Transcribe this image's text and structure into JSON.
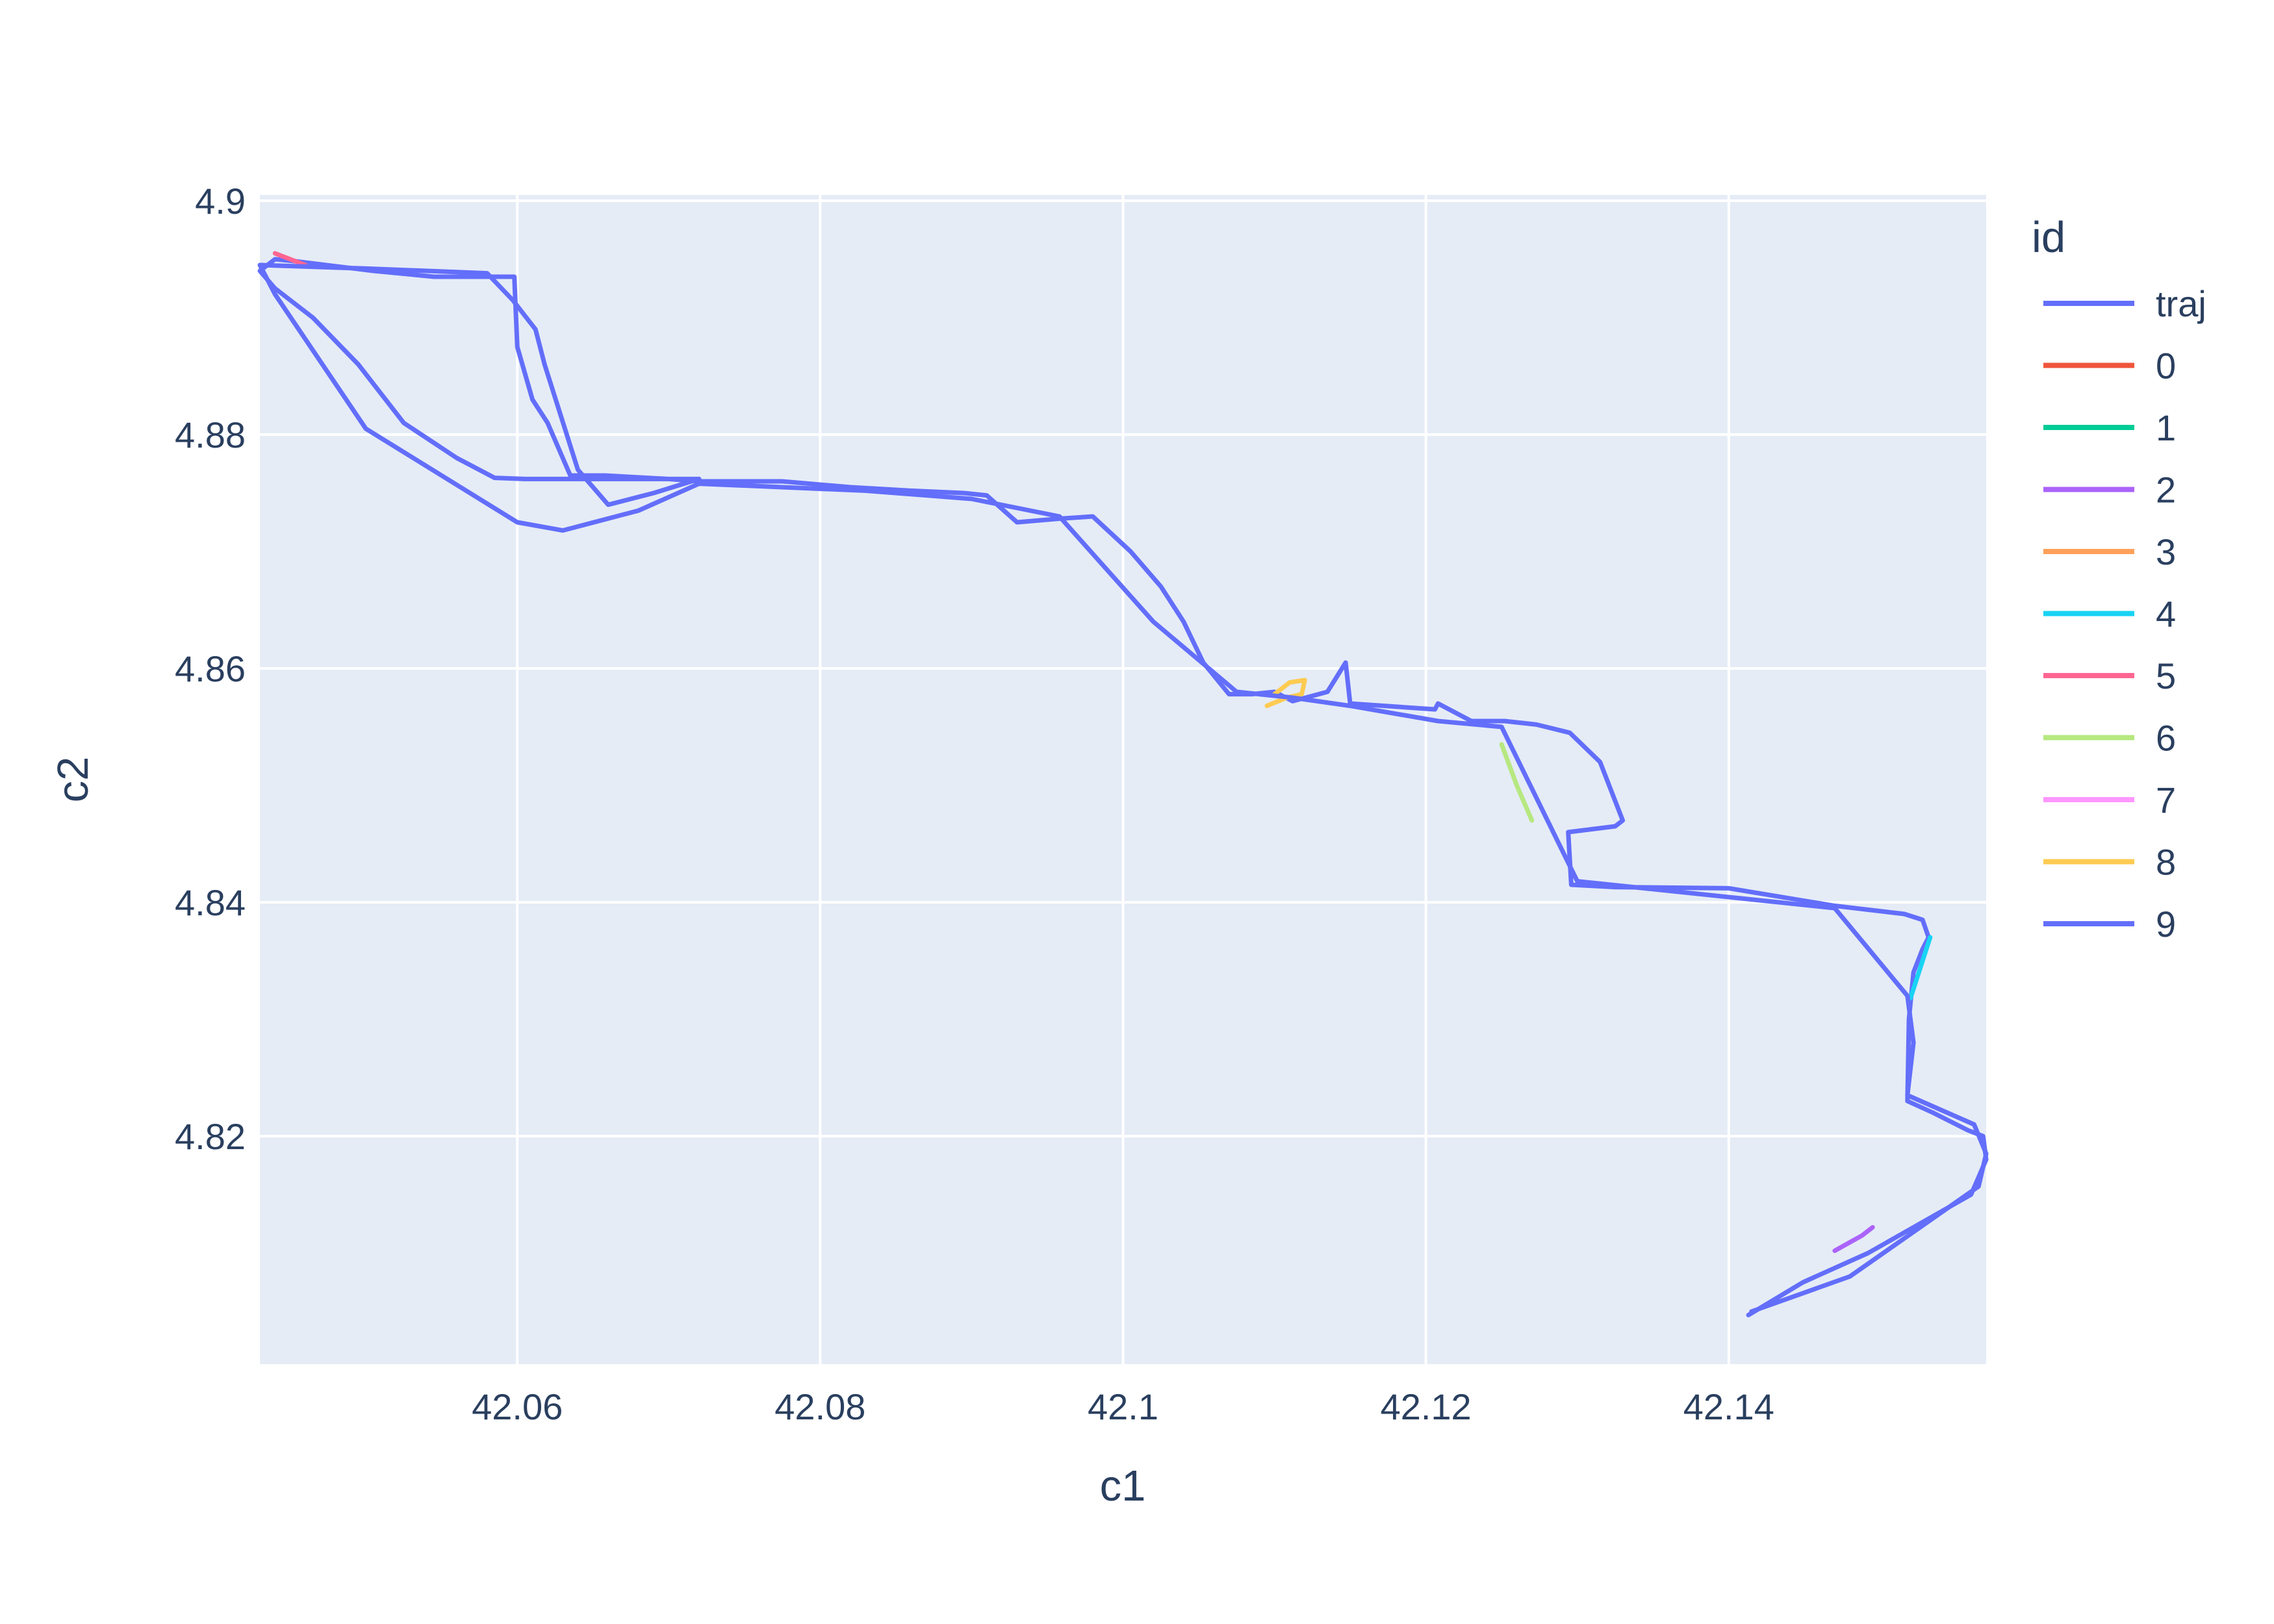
{
  "chart_data": {
    "type": "line",
    "xlabel": "c1",
    "ylabel": "c2",
    "xlim": [
      42.043,
      42.157
    ],
    "ylim": [
      4.8005,
      4.9005
    ],
    "x_ticks": [
      42.06,
      42.08,
      42.1,
      42.12,
      42.14
    ],
    "x_tick_labels": [
      "42.06",
      "42.08",
      "42.1",
      "42.12",
      "42.14"
    ],
    "y_ticks": [
      4.82,
      4.84,
      4.86,
      4.88,
      4.9
    ],
    "y_tick_labels": [
      "4.82",
      "4.84",
      "4.86",
      "4.88",
      "4.9"
    ],
    "grid": true,
    "plot_background": "#e5ecf6",
    "legend": {
      "title": "id",
      "placement": "right"
    },
    "series": [
      {
        "name": "traj",
        "color": "#636efa",
        "x": [
          42.1413,
          42.1449,
          42.1492,
          42.156,
          42.157,
          42.1568,
          42.1558,
          42.1535,
          42.1518,
          42.1519,
          42.1522,
          42.1528,
          42.1532,
          42.1528,
          42.1516,
          42.147,
          42.14,
          42.1325,
          42.1296,
          42.1294,
          42.1325,
          42.133,
          42.1315,
          42.1295,
          42.1273,
          42.1252,
          42.123,
          42.1208,
          42.1206,
          42.115,
          42.1147,
          42.1135,
          42.1112,
          42.11,
          42.1085,
          42.107,
          42.1053,
          42.104,
          42.1025,
          42.1005,
          42.098,
          42.0957,
          42.093,
          42.091,
          42.0895,
          42.086,
          42.082,
          42.0775,
          42.072,
          42.07,
          42.068,
          42.0665,
          42.0645,
          42.0625,
          42.0605,
          42.0585,
          42.056,
          42.0525,
          42.0495,
          42.0465,
          42.044,
          42.043,
          42.044,
          42.0455,
          42.0505,
          42.0545,
          42.0575,
          42.0598,
          42.06,
          42.061,
          42.062,
          42.0635,
          42.0658,
          42.07,
          42.072
        ],
        "y": [
          4.8047,
          4.8075,
          4.81,
          4.815,
          4.818,
          4.82,
          4.8205,
          4.822,
          4.823,
          4.83,
          4.834,
          4.836,
          4.837,
          4.8385,
          4.839,
          4.8397,
          4.8412,
          4.8413,
          4.8415,
          4.846,
          4.8465,
          4.847,
          4.852,
          4.8545,
          4.8552,
          4.8555,
          4.8555,
          4.857,
          4.8565,
          4.857,
          4.8605,
          4.858,
          4.8572,
          4.858,
          4.8578,
          4.8578,
          4.8605,
          4.864,
          4.867,
          4.87,
          4.873,
          4.8728,
          4.8725,
          4.8748,
          4.875,
          4.8752,
          4.8755,
          4.876,
          4.876,
          4.8762,
          4.8762,
          4.8762,
          4.8762,
          4.8762,
          4.8762,
          4.8763,
          4.878,
          4.881,
          4.886,
          4.89,
          4.8925,
          4.894,
          4.895,
          4.8948,
          4.894,
          4.8935,
          4.8935,
          4.8935,
          4.8875,
          4.883,
          4.881,
          4.8765,
          4.8765,
          4.8762,
          4.8762
        ]
      },
      {
        "name": "0",
        "color": "#ef553b",
        "x": [],
        "y": []
      },
      {
        "name": "1",
        "color": "#00cc96",
        "x": [],
        "y": []
      },
      {
        "name": "2",
        "color": "#ab63fa",
        "x": [
          42.1495,
          42.1488,
          42.147
        ],
        "y": [
          4.8122,
          4.8115,
          4.8102
        ]
      },
      {
        "name": "3",
        "color": "#ffa15a",
        "x": [],
        "y": []
      },
      {
        "name": "4",
        "color": "#19d3f3",
        "x": [
          42.152,
          42.1528,
          42.1533
        ],
        "y": [
          4.8318,
          4.835,
          4.837
        ]
      },
      {
        "name": "5",
        "color": "#ff6692",
        "x": [
          42.044,
          42.045,
          42.046
        ],
        "y": [
          4.8955,
          4.895,
          4.8945
        ]
      },
      {
        "name": "6",
        "color": "#b6e880",
        "x": [
          42.125,
          42.126,
          42.127
        ],
        "y": [
          4.8535,
          4.85,
          4.847
        ]
      },
      {
        "name": "7",
        "color": "#ff97ff",
        "x": [],
        "y": []
      },
      {
        "name": "8",
        "color": "#fecb52",
        "x": [
          42.1095,
          42.1108,
          42.1118,
          42.112,
          42.111,
          42.11
        ],
        "y": [
          4.8568,
          4.8575,
          4.8578,
          4.859,
          4.8588,
          4.8578
        ]
      },
      {
        "name": "9",
        "color": "#636efa",
        "x": [
          42.1415,
          42.148,
          42.1565,
          42.157,
          42.1562,
          42.1518,
          42.1522,
          42.1518,
          42.147,
          42.13,
          42.125,
          42.1208,
          42.115,
          42.1112,
          42.1075,
          42.102,
          42.0958,
          42.09,
          42.083,
          42.072,
          42.068,
          42.063,
          42.06,
          42.05,
          42.044,
          42.043,
          42.05,
          42.058,
          42.0597,
          42.0612,
          42.0618,
          42.064,
          42.066,
          42.069,
          42.072
        ],
        "y": [
          4.805,
          4.808,
          4.8157,
          4.8185,
          4.821,
          4.8235,
          4.828,
          4.832,
          4.8395,
          4.8418,
          4.855,
          4.8555,
          4.8568,
          4.8575,
          4.858,
          4.864,
          4.873,
          4.8745,
          4.8752,
          4.8758,
          4.8735,
          4.8718,
          4.8725,
          4.8805,
          4.892,
          4.8945,
          4.8942,
          4.8938,
          4.8915,
          4.889,
          4.886,
          4.877,
          4.874,
          4.875,
          4.8762
        ]
      }
    ]
  }
}
